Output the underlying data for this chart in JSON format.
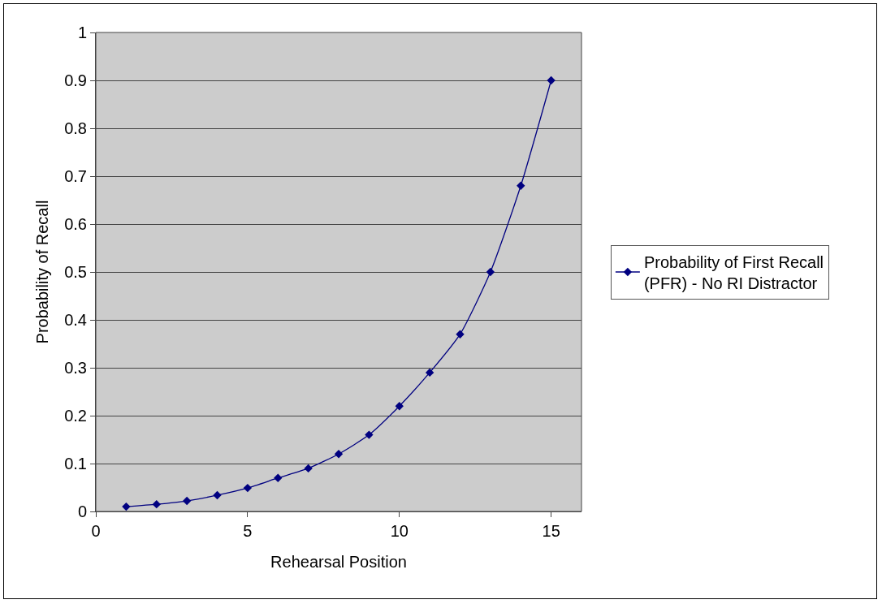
{
  "chart_data": {
    "type": "line",
    "xlabel": "Rehearsal Position",
    "ylabel": "Probability of Recall",
    "x": [
      1,
      2,
      3,
      4,
      5,
      6,
      7,
      8,
      9,
      10,
      11,
      12,
      13,
      14,
      15
    ],
    "series": [
      {
        "name": "Probability of First Recall\n(PFR) - No RI Distractor",
        "color": "#000080",
        "values": [
          0.01,
          0.015,
          0.022,
          0.034,
          0.049,
          0.07,
          0.09,
          0.12,
          0.16,
          0.22,
          0.29,
          0.37,
          0.5,
          0.68,
          0.9
        ]
      }
    ],
    "xlim": [
      0,
      16
    ],
    "xticks": [
      0,
      5,
      10,
      15
    ],
    "ylim": [
      0,
      1
    ],
    "yticks": [
      0,
      0.1,
      0.2,
      0.3,
      0.4,
      0.5,
      0.6,
      0.7,
      0.8,
      0.9,
      1
    ],
    "grid": "y",
    "legend": "right",
    "marker": "diamond",
    "line_style": "solid"
  }
}
